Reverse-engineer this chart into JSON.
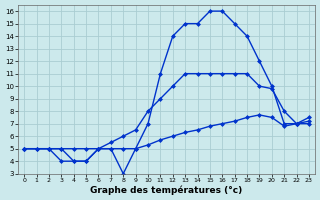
{
  "xlabel": "Graphe des températures (°c)",
  "bg_color": "#cce9ec",
  "grid_color": "#aacdd2",
  "line_color": "#0033cc",
  "x_ticks": [
    0,
    1,
    2,
    3,
    4,
    5,
    6,
    7,
    8,
    9,
    10,
    11,
    12,
    13,
    14,
    15,
    16,
    17,
    18,
    19,
    20,
    21,
    22,
    23
  ],
  "y_ticks": [
    3,
    4,
    5,
    6,
    7,
    8,
    9,
    10,
    11,
    12,
    13,
    14,
    15,
    16
  ],
  "ylim": [
    3,
    16.5
  ],
  "xlim": [
    -0.5,
    23.5
  ],
  "line1_x": [
    0,
    1,
    2,
    3,
    4,
    5,
    6,
    7,
    8,
    9,
    10,
    11,
    12,
    13,
    14,
    15,
    16,
    17,
    18,
    19,
    20,
    21,
    22,
    23
  ],
  "line1_y": [
    5,
    5,
    5,
    4,
    4,
    4,
    5,
    5,
    3,
    5,
    7,
    11,
    14,
    15,
    15,
    16,
    16,
    15,
    14,
    12,
    10,
    7,
    7,
    7
  ],
  "line2_x": [
    0,
    2,
    3,
    4,
    5,
    6,
    7,
    8,
    9,
    10,
    11,
    12,
    13,
    14,
    15,
    16,
    17,
    18,
    19,
    20,
    21,
    22,
    23
  ],
  "line2_y": [
    5,
    5,
    5,
    4,
    4,
    5,
    5.5,
    6,
    6.5,
    8,
    9,
    10,
    11,
    11,
    11,
    11,
    11,
    11,
    10,
    9.8,
    8,
    7,
    7.5
  ],
  "line3_x": [
    0,
    1,
    2,
    3,
    4,
    5,
    6,
    7,
    8,
    9,
    10,
    11,
    12,
    13,
    14,
    15,
    16,
    17,
    18,
    19,
    20,
    21,
    22,
    23
  ],
  "line3_y": [
    5,
    5,
    5,
    5,
    5,
    5,
    5,
    5,
    5,
    5,
    5.3,
    5.7,
    6,
    6.3,
    6.5,
    6.8,
    7,
    7.2,
    7.5,
    7.7,
    7.5,
    6.8,
    7,
    7.2
  ]
}
